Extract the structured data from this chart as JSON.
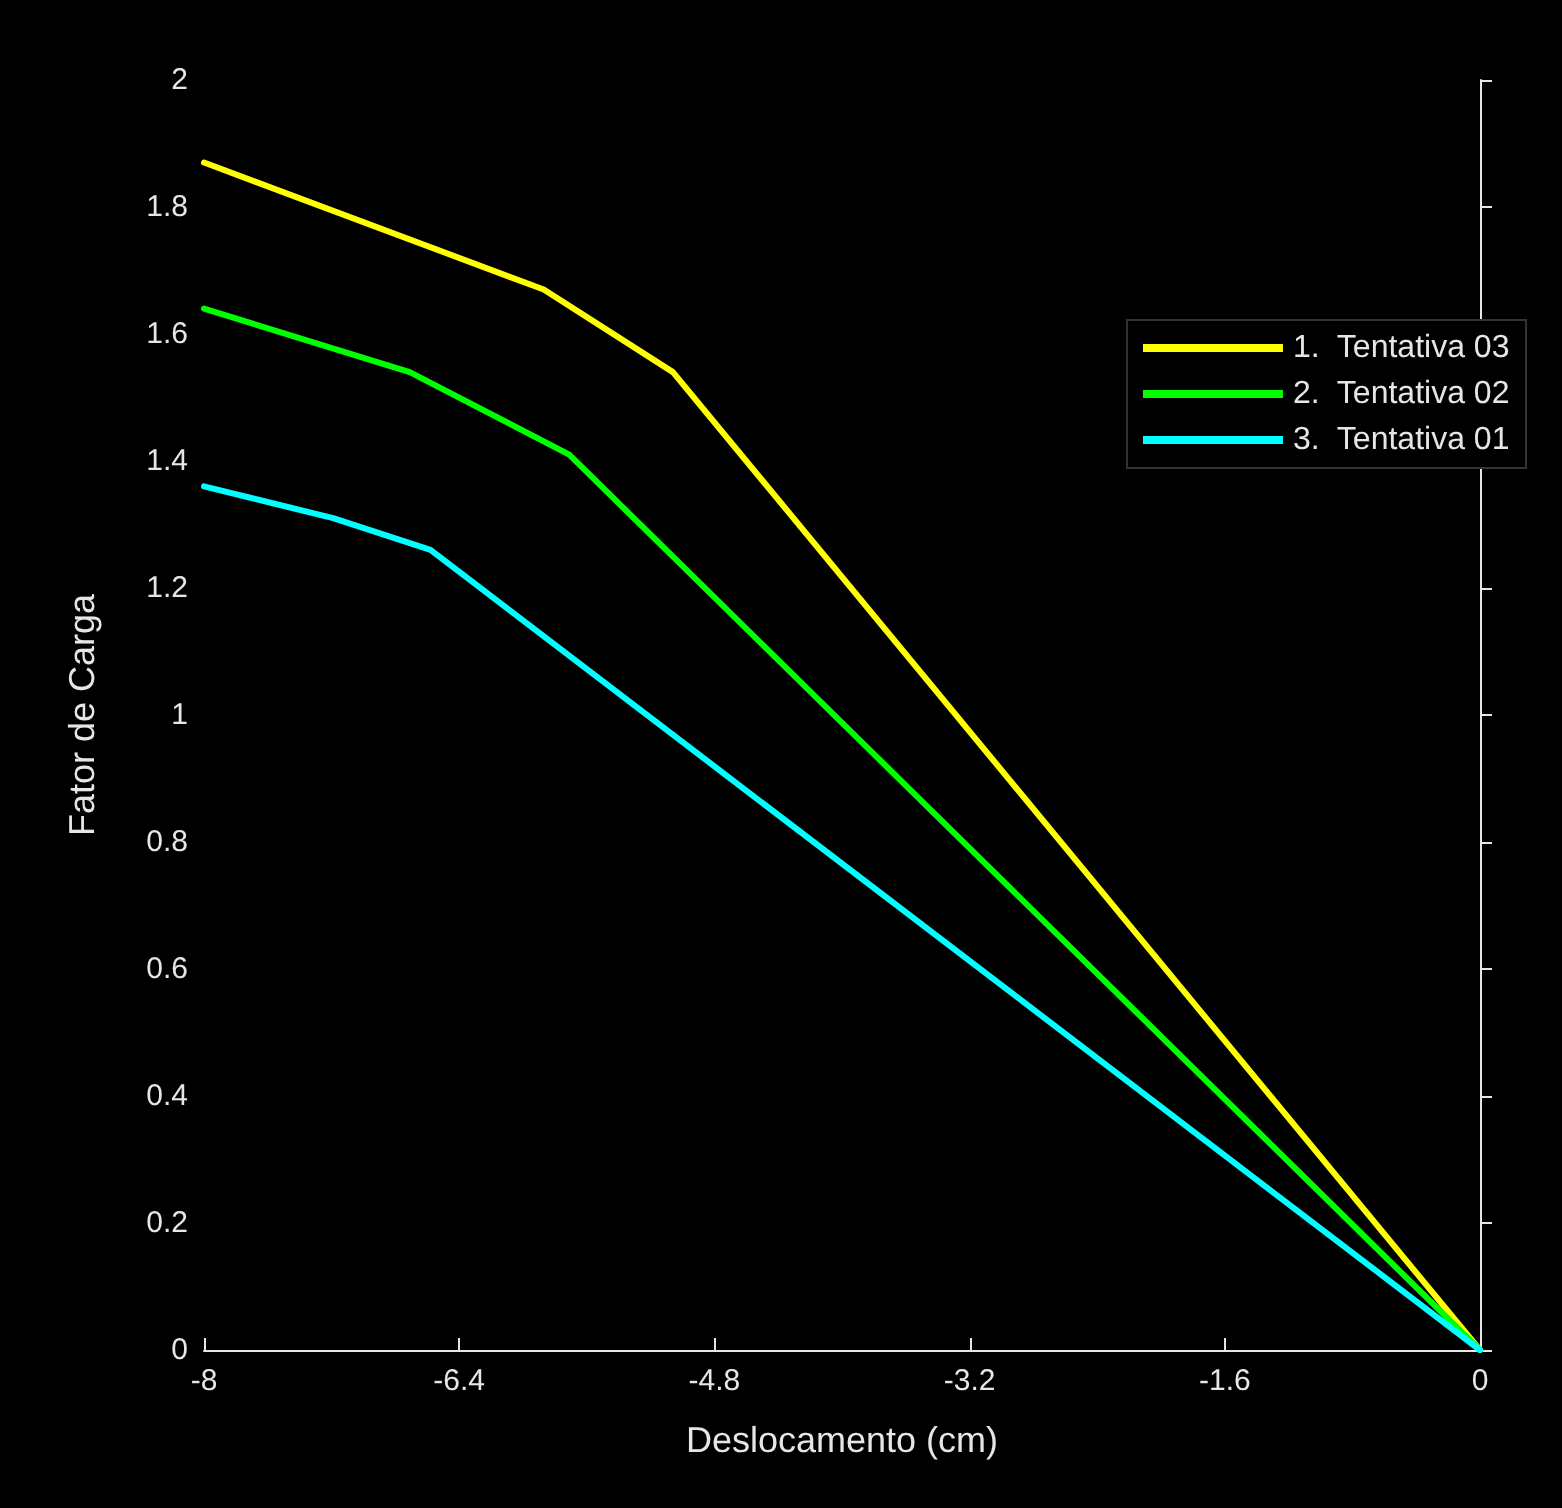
{
  "chart_data": {
    "type": "line",
    "xlabel": "Deslocamento (cm)",
    "ylabel": "Fator de Carga",
    "xlim": [
      -8,
      0
    ],
    "xticks": [
      -8,
      -6.4,
      -4.8,
      -3.2,
      -1.6,
      0
    ],
    "ylim": [
      0,
      2
    ],
    "yticks": [
      0,
      0.2,
      0.4,
      0.6,
      0.8,
      1,
      1.2,
      1.4,
      1.6,
      1.8,
      2
    ],
    "grid": false,
    "legend": "top right",
    "marker": "none",
    "line_style": "solid",
    "series": [
      {
        "name": "1.  Tentativa 03",
        "color": "#ffff00",
        "x": [
          -8,
          -5.87,
          -5.06,
          0
        ],
        "values": [
          1.87,
          1.67,
          1.54,
          0
        ]
      },
      {
        "name": "2.  Tentativa 02",
        "color": "#00ff00",
        "x": [
          -8,
          -6.71,
          -5.71,
          0
        ],
        "values": [
          1.64,
          1.54,
          1.41,
          0
        ]
      },
      {
        "name": "3.  Tentativa 01",
        "color": "#00ffff",
        "x": [
          -8,
          -7.19,
          -6.58,
          0
        ],
        "values": [
          1.36,
          1.31,
          1.26,
          0
        ]
      }
    ]
  }
}
